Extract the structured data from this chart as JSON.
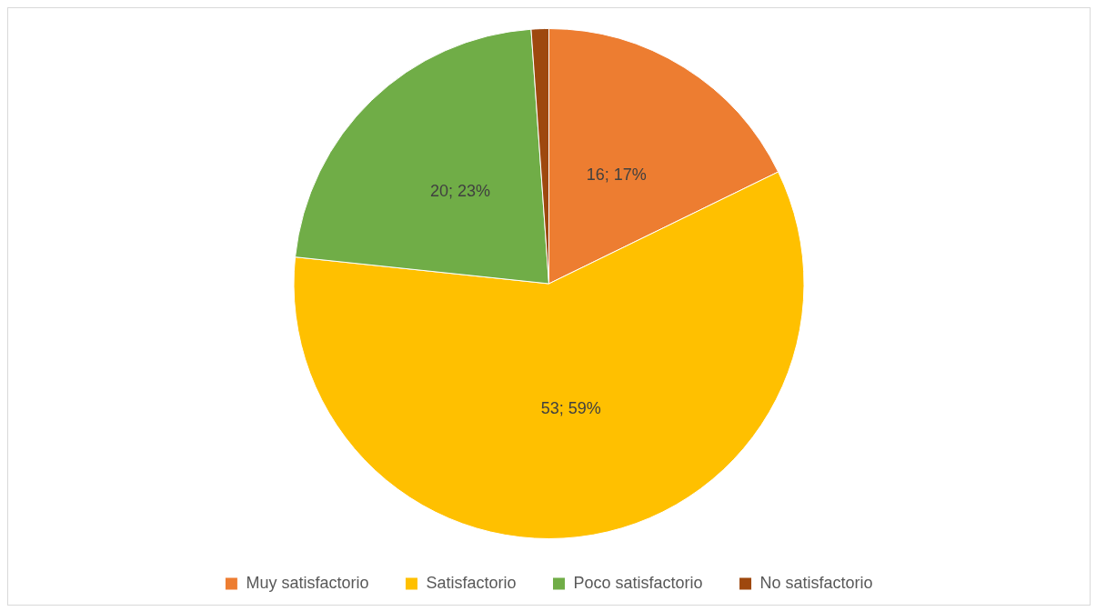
{
  "chart_data": {
    "type": "pie",
    "categories": [
      "Muy satisfactorio",
      "Satisfactorio",
      "Poco satisfactorio",
      "No satisfactorio"
    ],
    "values": [
      16,
      53,
      20,
      1
    ],
    "colors": [
      "#ed7d31",
      "#ffc000",
      "#70ad47",
      "#9e480e"
    ],
    "value_labels": [
      "16; 17%",
      "53; 59%",
      "20; 23%",
      null
    ],
    "legend": "bottom"
  }
}
